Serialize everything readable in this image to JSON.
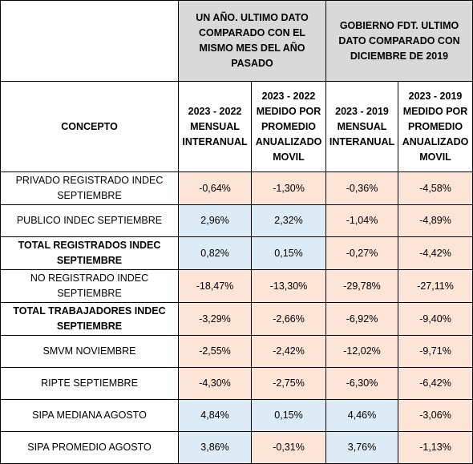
{
  "header": {
    "group1": "UN AÑO. ULTIMO DATO COMPARADO CON EL MISMO MES DEL AÑO PASADO",
    "group2": "GOBIERNO FDT. ULTIMO DATO COMPARADO CON DICIEMBRE DE 2019",
    "concept": "CONCEPTO",
    "cols": [
      "2023 - 2022 MENSUAL INTERANUAL",
      "2023 - 2022 MEDIDO POR PROMEDIO ANUALIZADO MOVIL",
      "2023 - 2019 MENSUAL INTERANUAL",
      "2023 - 2019 MEDIDO POR PROMEDIO ANUALIZADO MOVIL"
    ]
  },
  "rows": [
    {
      "concept": "PRIVADO REGISTRADO INDEC SEPTIEMBRE",
      "values": [
        "-0,64%",
        "-1,30%",
        "-0,36%",
        "-4,58%"
      ]
    },
    {
      "concept": "PUBLICO INDEC SEPTIEMBRE",
      "values": [
        "2,96%",
        "2,32%",
        "-1,04%",
        "-4,89%"
      ]
    },
    {
      "concept": "TOTAL REGISTRADOS INDEC SEPTIEMBRE",
      "values": [
        "0,82%",
        "0,15%",
        "-0,27%",
        "-4,42%"
      ]
    },
    {
      "concept": "NO REGISTRADO INDEC SEPTIEMBRE",
      "values": [
        "-18,47%",
        "-13,30%",
        "-29,78%",
        "-27,11%"
      ]
    },
    {
      "concept": "TOTAL TRABAJADORES INDEC SEPTIEMBRE",
      "values": [
        "-3,29%",
        "-2,66%",
        "-6,92%",
        "-9,40%"
      ]
    },
    {
      "concept": "SMVM NOVIEMBRE",
      "values": [
        "-2,55%",
        "-2,42%",
        "-12,02%",
        "-9,71%"
      ]
    },
    {
      "concept": "RIPTE SEPTIEMBRE",
      "values": [
        "-4,30%",
        "-2,75%",
        "-6,30%",
        "-6,42%"
      ]
    },
    {
      "concept": "SIPA MEDIANA AGOSTO",
      "values": [
        "4,84%",
        "0,15%",
        "4,46%",
        "-3,06%"
      ]
    },
    {
      "concept": "SIPA PROMEDIO AGOSTO",
      "values": [
        "3,86%",
        "-0,31%",
        "3,76%",
        "-1,13%"
      ]
    }
  ],
  "colors": {
    "negative_fill": "#fce4d6",
    "positive_fill": "#ddebf7",
    "header_fill": "#d9d9d9"
  }
}
